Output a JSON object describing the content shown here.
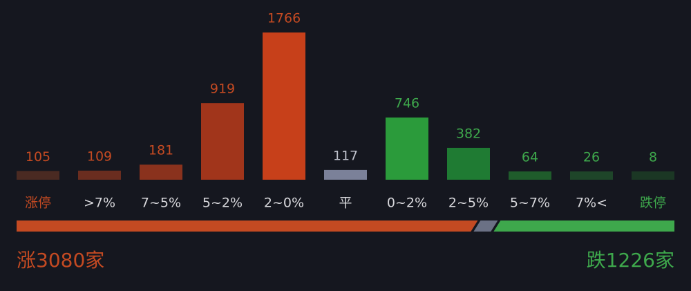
{
  "chart_data": {
    "type": "bar",
    "categories": [
      "涨停",
      ">7%",
      "7~5%",
      "5~2%",
      "2~0%",
      "平",
      "0~2%",
      "2~5%",
      "5~7%",
      "7%<",
      "跌停"
    ],
    "values": [
      105,
      109,
      181,
      919,
      1766,
      117,
      746,
      382,
      64,
      26,
      8
    ],
    "colors": [
      "#4a2a22",
      "#6a2d1f",
      "#8a321d",
      "#a1351b",
      "#c7401a",
      "#7b8199",
      "#2b9b3b",
      "#1f7b33",
      "#1f5c2b",
      "#1e4529",
      "#1b3724"
    ],
    "label_colors": [
      "#c44a22",
      "#c44a22",
      "#c44a22",
      "#c44a22",
      "#c44a22",
      "#bfc2cc",
      "#3ea84c",
      "#3ea84c",
      "#3ea84c",
      "#3ea84c",
      "#3ea84c"
    ],
    "category_colors": [
      "#c44a22",
      "#d8d8dc",
      "#d8d8dc",
      "#d8d8dc",
      "#d8d8dc",
      "#d8d8dc",
      "#d8d8dc",
      "#d8d8dc",
      "#d8d8dc",
      "#d8d8dc",
      "#3ea84c"
    ],
    "summary": {
      "rise": {
        "prefix": "涨",
        "count": 3080,
        "suffix": "家",
        "color": "#c44a22"
      },
      "fall": {
        "prefix": "跌",
        "count": 1226,
        "suffix": "家",
        "color": "#3ea84c"
      },
      "flat_color": "#6b7185"
    }
  }
}
